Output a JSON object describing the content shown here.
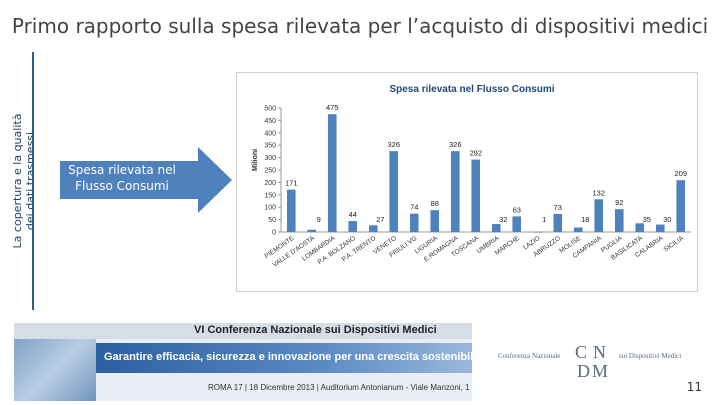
{
  "slide": {
    "title": "Primo rapporto sulla spesa rilevata per l’acquisto di dispositivi medici",
    "side_label_line1": "La copertura e la qualità",
    "side_label_line2": "dei dati trasmessi",
    "arrow_text_line1": "Spesa rilevata nel",
    "arrow_text_line2": "Flusso Consumi",
    "page_number": "11"
  },
  "banner": {
    "conference": "VI Conferenza Nazionale sui Dispositivi Medici",
    "motto": "Garantire efficacia, sicurezza e innovazione per una crescita sostenibile",
    "venue": "ROMA 17 | 18 Dicembre 2013 | Auditorium Antonianum - Viale Manzoni, 1"
  },
  "logo": {
    "left_text": "Conferenza Nazionale",
    "right_text": "sui Dispositivi Medici"
  },
  "colors": {
    "bar": "#4f81bd",
    "arrow": "#4f81bd",
    "rule": "#2e5c8a",
    "title": "#444444",
    "chart_title": "#1f497d"
  },
  "chart_data": {
    "type": "bar",
    "title": "Spesa rilevata nel Flusso Consumi",
    "ylabel": "Milioni",
    "xlabel": "",
    "ylim": [
      0,
      500
    ],
    "yticks": [
      0,
      50,
      100,
      150,
      200,
      250,
      300,
      350,
      400,
      450,
      500
    ],
    "grid": false,
    "legend": "none",
    "categories": [
      "PIEMONTE",
      "VALLE D'AOSTA",
      "LOMBARDIA",
      "P.A. BOLZANO",
      "P.A. TRENTO",
      "VENETO",
      "FRIULI VG",
      "LIGURIA",
      "E.ROMAGNA",
      "TOSCANA",
      "UMBRIA",
      "MARCHE",
      "LAZIO",
      "ABRUZZO",
      "MOLISE",
      "CAMPANIA",
      "PUGLIA",
      "BASILICATA",
      "CALABRIA",
      "SICILIA"
    ],
    "values": [
      171,
      9,
      475,
      44,
      27,
      326,
      74,
      88,
      326,
      292,
      32,
      63,
      1,
      73,
      18,
      132,
      92,
      35,
      30,
      209
    ]
  }
}
